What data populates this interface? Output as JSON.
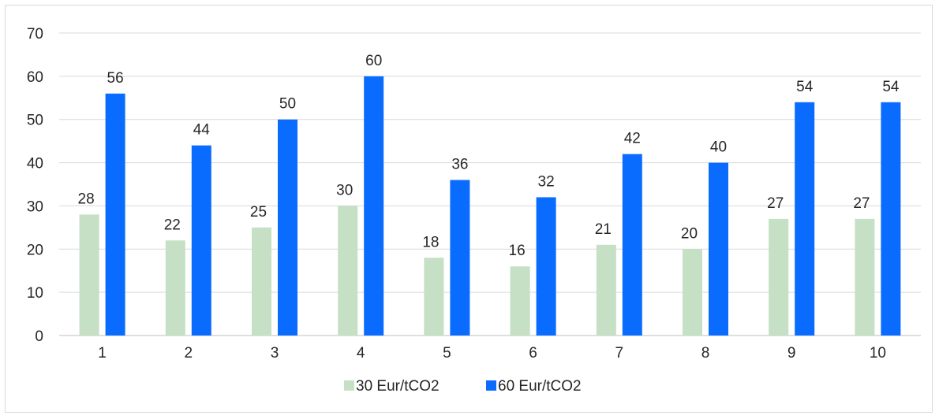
{
  "chart_data": {
    "type": "bar",
    "categories": [
      "1",
      "2",
      "3",
      "4",
      "5",
      "6",
      "7",
      "8",
      "9",
      "10"
    ],
    "series": [
      {
        "name": "30 Eur/tCO2",
        "color": "#c5e0c4",
        "values": [
          28,
          22,
          25,
          30,
          18,
          16,
          21,
          20,
          27,
          27
        ]
      },
      {
        "name": "60 Eur/tCO2",
        "color": "#0a6cff",
        "values": [
          56,
          44,
          50,
          60,
          36,
          32,
          42,
          40,
          54,
          54
        ]
      }
    ],
    "ylim": [
      0,
      70
    ],
    "yticks": [
      0,
      10,
      20,
      30,
      40,
      50,
      60,
      70
    ],
    "grid": true,
    "legend_position": "bottom",
    "data_labels": true
  }
}
